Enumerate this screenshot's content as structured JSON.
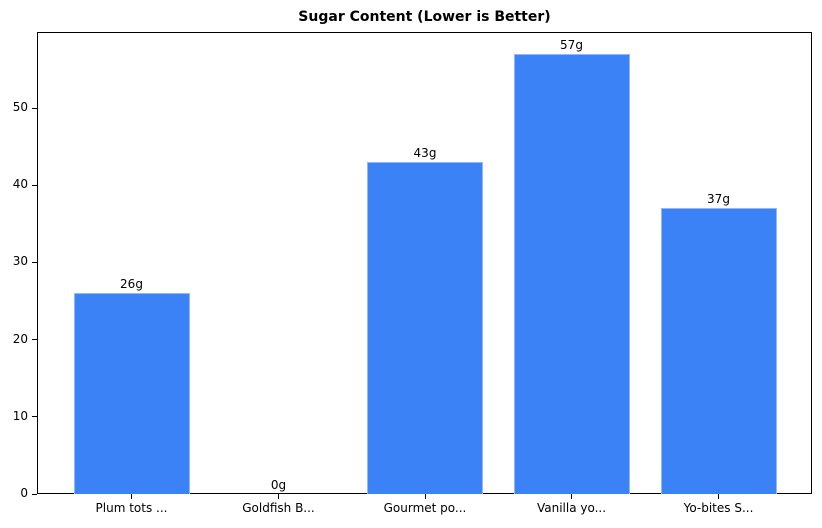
{
  "chart_data": {
    "type": "bar",
    "title": "Sugar Content (Lower is Better)",
    "xlabel": "",
    "ylabel": "",
    "categories": [
      "Plum tots ...",
      "Goldfish B...",
      "Gourmet po...",
      "Vanilla yo...",
      "Yo-bites S..."
    ],
    "values": [
      26,
      0,
      43,
      57,
      37
    ],
    "data_labels": [
      "26g",
      "0g",
      "43g",
      "57g",
      "37g"
    ],
    "ylim": [
      0,
      59.85
    ],
    "yticks": [
      0,
      10,
      20,
      30,
      40,
      50
    ],
    "grid": false,
    "legend": null,
    "bar_color": "#3b82f6"
  }
}
